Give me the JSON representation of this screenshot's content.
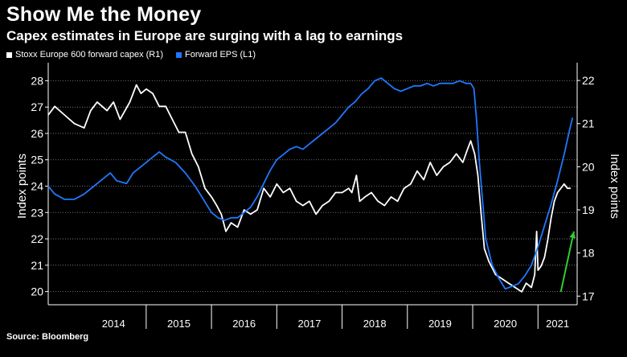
{
  "header": {
    "title": "Show Me the Money",
    "subtitle": "Capex estimates in Europe are surging with a lag to earnings"
  },
  "footer": {
    "source": "Source: Bloomberg"
  },
  "chart_data": {
    "type": "line",
    "title": "Show Me the Money",
    "subtitle": "Capex estimates in Europe are surging with a lag to earnings",
    "source": "Source: Bloomberg",
    "legend_placement": "top-left",
    "grid": "horizontal dotted",
    "x_range": [
      2013.5,
      2021.6
    ],
    "x_ticks": [
      "2014",
      "2015",
      "2016",
      "2017",
      "2018",
      "2019",
      "2020",
      "2021"
    ],
    "left_axis": {
      "label": "Index points",
      "range": [
        19.5,
        28.5
      ],
      "ticks": [
        20,
        21,
        22,
        23,
        24,
        25,
        26,
        27,
        28
      ]
    },
    "right_axis": {
      "label": "Index points",
      "range": [
        16.8,
        22.3
      ],
      "ticks": [
        17,
        18,
        19,
        20,
        21,
        22
      ]
    },
    "series": [
      {
        "name": "Stoxx Europe 600 forward capex (R1)",
        "axis": "right",
        "color": "#ffffff",
        "points": [
          [
            2013.5,
            21.2
          ],
          [
            2013.6,
            21.4
          ],
          [
            2013.75,
            21.2
          ],
          [
            2013.9,
            21.0
          ],
          [
            2014.05,
            20.9
          ],
          [
            2014.15,
            21.3
          ],
          [
            2014.25,
            21.5
          ],
          [
            2014.4,
            21.3
          ],
          [
            2014.5,
            21.5
          ],
          [
            2014.6,
            21.1
          ],
          [
            2014.75,
            21.5
          ],
          [
            2014.85,
            21.9
          ],
          [
            2014.92,
            21.7
          ],
          [
            2015.0,
            21.8
          ],
          [
            2015.1,
            21.7
          ],
          [
            2015.2,
            21.4
          ],
          [
            2015.3,
            21.4
          ],
          [
            2015.4,
            21.1
          ],
          [
            2015.5,
            20.8
          ],
          [
            2015.6,
            20.8
          ],
          [
            2015.7,
            20.3
          ],
          [
            2015.8,
            20.0
          ],
          [
            2015.9,
            19.5
          ],
          [
            2016.0,
            19.3
          ],
          [
            2016.08,
            19.1
          ],
          [
            2016.15,
            18.9
          ],
          [
            2016.22,
            18.5
          ],
          [
            2016.3,
            18.7
          ],
          [
            2016.4,
            18.6
          ],
          [
            2016.5,
            19.0
          ],
          [
            2016.6,
            18.9
          ],
          [
            2016.7,
            19.0
          ],
          [
            2016.8,
            19.5
          ],
          [
            2016.9,
            19.3
          ],
          [
            2017.0,
            19.6
          ],
          [
            2017.1,
            19.4
          ],
          [
            2017.2,
            19.5
          ],
          [
            2017.3,
            19.2
          ],
          [
            2017.4,
            19.1
          ],
          [
            2017.5,
            19.2
          ],
          [
            2017.6,
            18.9
          ],
          [
            2017.7,
            19.1
          ],
          [
            2017.8,
            19.2
          ],
          [
            2017.9,
            19.4
          ],
          [
            2018.0,
            19.4
          ],
          [
            2018.1,
            19.5
          ],
          [
            2018.15,
            19.4
          ],
          [
            2018.22,
            19.8
          ],
          [
            2018.27,
            19.2
          ],
          [
            2018.35,
            19.3
          ],
          [
            2018.45,
            19.4
          ],
          [
            2018.55,
            19.2
          ],
          [
            2018.65,
            19.1
          ],
          [
            2018.75,
            19.3
          ],
          [
            2018.85,
            19.2
          ],
          [
            2018.95,
            19.5
          ],
          [
            2019.05,
            19.6
          ],
          [
            2019.15,
            19.9
          ],
          [
            2019.25,
            19.7
          ],
          [
            2019.35,
            20.1
          ],
          [
            2019.45,
            19.8
          ],
          [
            2019.55,
            20.0
          ],
          [
            2019.65,
            20.1
          ],
          [
            2019.75,
            20.3
          ],
          [
            2019.85,
            20.1
          ],
          [
            2019.92,
            20.4
          ],
          [
            2019.97,
            20.6
          ],
          [
            2020.03,
            20.3
          ],
          [
            2020.08,
            19.8
          ],
          [
            2020.13,
            18.9
          ],
          [
            2020.18,
            18.1
          ],
          [
            2020.25,
            17.8
          ],
          [
            2020.35,
            17.5
          ],
          [
            2020.45,
            17.4
          ],
          [
            2020.55,
            17.3
          ],
          [
            2020.65,
            17.2
          ],
          [
            2020.75,
            17.1
          ],
          [
            2020.82,
            17.3
          ],
          [
            2020.9,
            17.2
          ],
          [
            2020.95,
            17.5
          ],
          [
            2020.98,
            18.5
          ],
          [
            2021.0,
            17.6
          ],
          [
            2021.05,
            17.7
          ],
          [
            2021.1,
            17.9
          ],
          [
            2021.15,
            18.3
          ],
          [
            2021.2,
            18.8
          ],
          [
            2021.25,
            19.2
          ],
          [
            2021.3,
            19.4
          ],
          [
            2021.35,
            19.5
          ],
          [
            2021.4,
            19.6
          ],
          [
            2021.45,
            19.5
          ],
          [
            2021.5,
            19.5
          ]
        ]
      },
      {
        "name": "Forward EPS (L1)",
        "axis": "left",
        "color": "#1f78ff",
        "points": [
          [
            2013.5,
            24.0
          ],
          [
            2013.6,
            23.7
          ],
          [
            2013.75,
            23.5
          ],
          [
            2013.9,
            23.5
          ],
          [
            2014.05,
            23.7
          ],
          [
            2014.2,
            24.0
          ],
          [
            2014.35,
            24.3
          ],
          [
            2014.45,
            24.5
          ],
          [
            2014.55,
            24.2
          ],
          [
            2014.7,
            24.1
          ],
          [
            2014.8,
            24.5
          ],
          [
            2014.95,
            24.8
          ],
          [
            2015.1,
            25.1
          ],
          [
            2015.2,
            25.3
          ],
          [
            2015.3,
            25.1
          ],
          [
            2015.45,
            24.9
          ],
          [
            2015.6,
            24.5
          ],
          [
            2015.75,
            24.0
          ],
          [
            2015.9,
            23.4
          ],
          [
            2016.0,
            23.0
          ],
          [
            2016.1,
            22.8
          ],
          [
            2016.2,
            22.7
          ],
          [
            2016.3,
            22.8
          ],
          [
            2016.4,
            22.8
          ],
          [
            2016.5,
            23.0
          ],
          [
            2016.6,
            23.2
          ],
          [
            2016.7,
            23.6
          ],
          [
            2016.8,
            24.1
          ],
          [
            2016.9,
            24.6
          ],
          [
            2017.0,
            25.0
          ],
          [
            2017.1,
            25.2
          ],
          [
            2017.2,
            25.4
          ],
          [
            2017.3,
            25.5
          ],
          [
            2017.4,
            25.4
          ],
          [
            2017.5,
            25.6
          ],
          [
            2017.6,
            25.8
          ],
          [
            2017.7,
            26.0
          ],
          [
            2017.8,
            26.2
          ],
          [
            2017.9,
            26.4
          ],
          [
            2018.0,
            26.7
          ],
          [
            2018.1,
            27.0
          ],
          [
            2018.2,
            27.2
          ],
          [
            2018.3,
            27.5
          ],
          [
            2018.4,
            27.7
          ],
          [
            2018.5,
            28.0
          ],
          [
            2018.6,
            28.1
          ],
          [
            2018.7,
            27.9
          ],
          [
            2018.8,
            27.7
          ],
          [
            2018.9,
            27.6
          ],
          [
            2019.0,
            27.7
          ],
          [
            2019.1,
            27.8
          ],
          [
            2019.2,
            27.8
          ],
          [
            2019.3,
            27.9
          ],
          [
            2019.4,
            27.8
          ],
          [
            2019.5,
            27.9
          ],
          [
            2019.6,
            27.9
          ],
          [
            2019.7,
            27.9
          ],
          [
            2019.8,
            28.0
          ],
          [
            2019.9,
            27.9
          ],
          [
            2019.97,
            27.9
          ],
          [
            2020.02,
            27.7
          ],
          [
            2020.06,
            26.5
          ],
          [
            2020.1,
            25.0
          ],
          [
            2020.15,
            23.5
          ],
          [
            2020.2,
            22.0
          ],
          [
            2020.3,
            21.0
          ],
          [
            2020.4,
            20.5
          ],
          [
            2020.5,
            20.1
          ],
          [
            2020.6,
            20.2
          ],
          [
            2020.7,
            20.3
          ],
          [
            2020.8,
            20.6
          ],
          [
            2020.9,
            21.0
          ],
          [
            2021.0,
            21.7
          ],
          [
            2021.1,
            22.5
          ],
          [
            2021.2,
            23.3
          ],
          [
            2021.3,
            24.2
          ],
          [
            2021.4,
            25.2
          ],
          [
            2021.48,
            26.1
          ],
          [
            2021.53,
            26.6
          ]
        ]
      }
    ],
    "annotations": [
      {
        "type": "arrow",
        "color": "#33cc33",
        "from": [
          2021.35,
          17.1
        ],
        "to": [
          2021.55,
          18.5
        ],
        "axis": "right"
      }
    ]
  }
}
